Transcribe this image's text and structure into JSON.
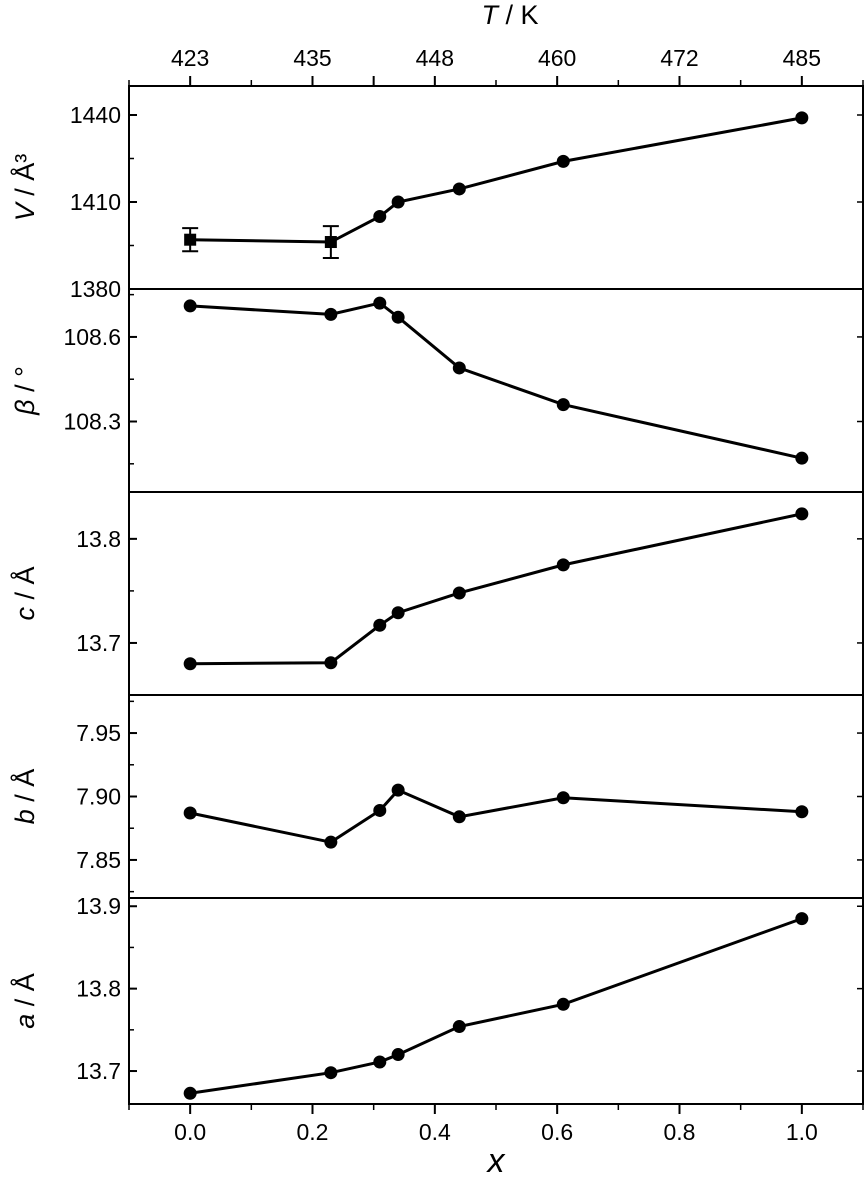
{
  "chart_data": {
    "type": "line",
    "x": [
      0.0,
      0.23,
      0.31,
      0.34,
      0.44,
      0.61,
      1.0
    ],
    "xlabel_main": "x",
    "xlim": [
      -0.1,
      1.1
    ],
    "xticks": [
      0.0,
      0.2,
      0.4,
      0.6,
      0.8,
      1.0
    ],
    "xtick_labels": [
      "0.0",
      "0.2",
      "0.4",
      "0.6",
      "0.8",
      "1.0"
    ],
    "top_axis": {
      "label_italic": "T",
      "label_rest": " / K",
      "ticks": [
        0.0,
        0.2,
        0.3,
        0.4,
        0.6,
        0.8,
        1.0
      ],
      "tick_labels": [
        "423",
        "435",
        "",
        "448",
        "460",
        "472",
        "485"
      ]
    },
    "panels": [
      {
        "id": "V",
        "label_italic": "V",
        "label_rest": " / Å³",
        "values": [
          1397,
          1396.2,
          1405,
          1410,
          1414.5,
          1424,
          1439
        ],
        "error": [
          4,
          5.5,
          0,
          0,
          0,
          0,
          0
        ],
        "marker": "square",
        "ylim": [
          1380,
          1450
        ],
        "yticks": [
          1380,
          1410,
          1440
        ],
        "ytick_labels": [
          "1380",
          "1410",
          "1440"
        ]
      },
      {
        "id": "beta",
        "label_italic": "β",
        "label_rest": " / °",
        "values": [
          108.71,
          108.68,
          108.72,
          108.67,
          108.49,
          108.36,
          108.17
        ],
        "marker": "circle",
        "ylim": [
          108.05,
          108.77
        ],
        "yticks": [
          108.3,
          108.6
        ],
        "ytick_labels": [
          "108.3",
          "108.6"
        ]
      },
      {
        "id": "c",
        "label_italic": "c",
        "label_rest": " / Å",
        "values": [
          13.68,
          13.681,
          13.717,
          13.729,
          13.748,
          13.775,
          13.824
        ],
        "marker": "circle",
        "ylim": [
          13.65,
          13.845
        ],
        "yticks": [
          13.7,
          13.8
        ],
        "ytick_labels": [
          "13.7",
          "13.8"
        ]
      },
      {
        "id": "b",
        "label_italic": "b",
        "label_rest": " / Å",
        "values": [
          7.887,
          7.864,
          7.889,
          7.905,
          7.884,
          7.899,
          7.888
        ],
        "marker": "circle",
        "ylim": [
          7.82,
          7.98
        ],
        "yticks": [
          7.85,
          7.9,
          7.95
        ],
        "ytick_labels": [
          "7.85",
          "7.90",
          "7.95"
        ]
      },
      {
        "id": "a",
        "label_italic": "a",
        "label_rest": " / Å",
        "values": [
          13.673,
          13.698,
          13.711,
          13.72,
          13.754,
          13.781,
          13.885
        ],
        "marker": "circle",
        "ylim": [
          13.66,
          13.91
        ],
        "yticks": [
          13.7,
          13.8,
          13.9
        ],
        "ytick_labels": [
          "13.7",
          "13.8",
          "13.9"
        ]
      }
    ],
    "grid": false,
    "line_color": "#000000"
  }
}
